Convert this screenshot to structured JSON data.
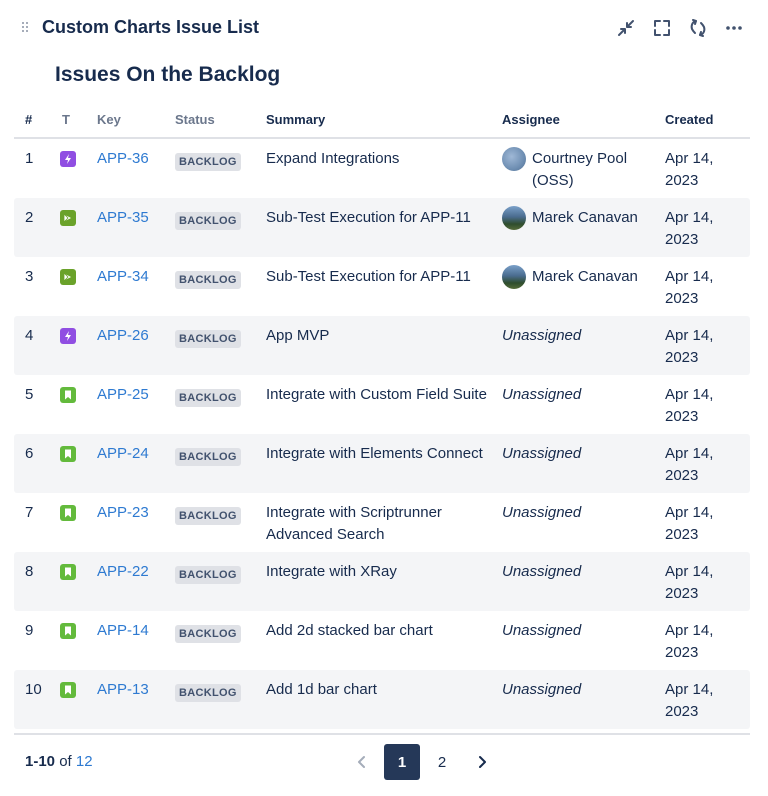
{
  "gadget": {
    "title": "Custom Charts Issue List",
    "actions": [
      {
        "name": "minimize-icon"
      },
      {
        "name": "fullscreen-icon"
      },
      {
        "name": "refresh-icon"
      },
      {
        "name": "more-icon"
      }
    ]
  },
  "chart_title": "Issues On the Backlog",
  "table": {
    "columns": {
      "num": "#",
      "type": "T",
      "key": "Key",
      "status": "Status",
      "summary": "Summary",
      "assignee": "Assignee",
      "created": "Created"
    },
    "rows": [
      {
        "num": "1",
        "type": "epic",
        "key": "APP-36",
        "status": "BACKLOG",
        "summary": "Expand Integrations",
        "assignee": "Courtney Pool (OSS)",
        "avatar": "cp",
        "created": "Apr 14, 2023"
      },
      {
        "num": "2",
        "type": "subtest",
        "key": "APP-35",
        "status": "BACKLOG",
        "summary": "Sub-Test Execution for APP-11",
        "assignee": "Marek Canavan",
        "avatar": "mc",
        "created": "Apr 14, 2023"
      },
      {
        "num": "3",
        "type": "subtest",
        "key": "APP-34",
        "status": "BACKLOG",
        "summary": "Sub-Test Execution for APP-11",
        "assignee": "Marek Canavan",
        "avatar": "mc",
        "created": "Apr 14, 2023"
      },
      {
        "num": "4",
        "type": "epic",
        "key": "APP-26",
        "status": "BACKLOG",
        "summary": "App MVP",
        "assignee": "Unassigned",
        "avatar": "",
        "created": "Apr 14, 2023"
      },
      {
        "num": "5",
        "type": "story",
        "key": "APP-25",
        "status": "BACKLOG",
        "summary": "Integrate with Custom Field Suite",
        "assignee": "Unassigned",
        "avatar": "",
        "created": "Apr 14, 2023"
      },
      {
        "num": "6",
        "type": "story",
        "key": "APP-24",
        "status": "BACKLOG",
        "summary": "Integrate with Elements Connect",
        "assignee": "Unassigned",
        "avatar": "",
        "created": "Apr 14, 2023"
      },
      {
        "num": "7",
        "type": "story",
        "key": "APP-23",
        "status": "BACKLOG",
        "summary": "Integrate with Scriptrunner Advanced Search",
        "assignee": "Unassigned",
        "avatar": "",
        "created": "Apr 14, 2023"
      },
      {
        "num": "8",
        "type": "story",
        "key": "APP-22",
        "status": "BACKLOG",
        "summary": "Integrate with XRay",
        "assignee": "Unassigned",
        "avatar": "",
        "created": "Apr 14, 2023"
      },
      {
        "num": "9",
        "type": "story",
        "key": "APP-14",
        "status": "BACKLOG",
        "summary": "Add 2d stacked bar chart",
        "assignee": "Unassigned",
        "avatar": "",
        "created": "Apr 14, 2023"
      },
      {
        "num": "10",
        "type": "story",
        "key": "APP-13",
        "status": "BACKLOG",
        "summary": "Add 1d bar chart",
        "assignee": "Unassigned",
        "avatar": "",
        "created": "Apr 14, 2023"
      }
    ]
  },
  "footer": {
    "range": "1-10",
    "of_label": "of",
    "total": "12",
    "pages": [
      "1",
      "2"
    ],
    "current_page": "1"
  },
  "colors": {
    "epic": "#904ee2",
    "subtest": "#6aa22a",
    "story": "#63ba3c",
    "link": "#2e7ad1",
    "active_page": "#253858"
  }
}
